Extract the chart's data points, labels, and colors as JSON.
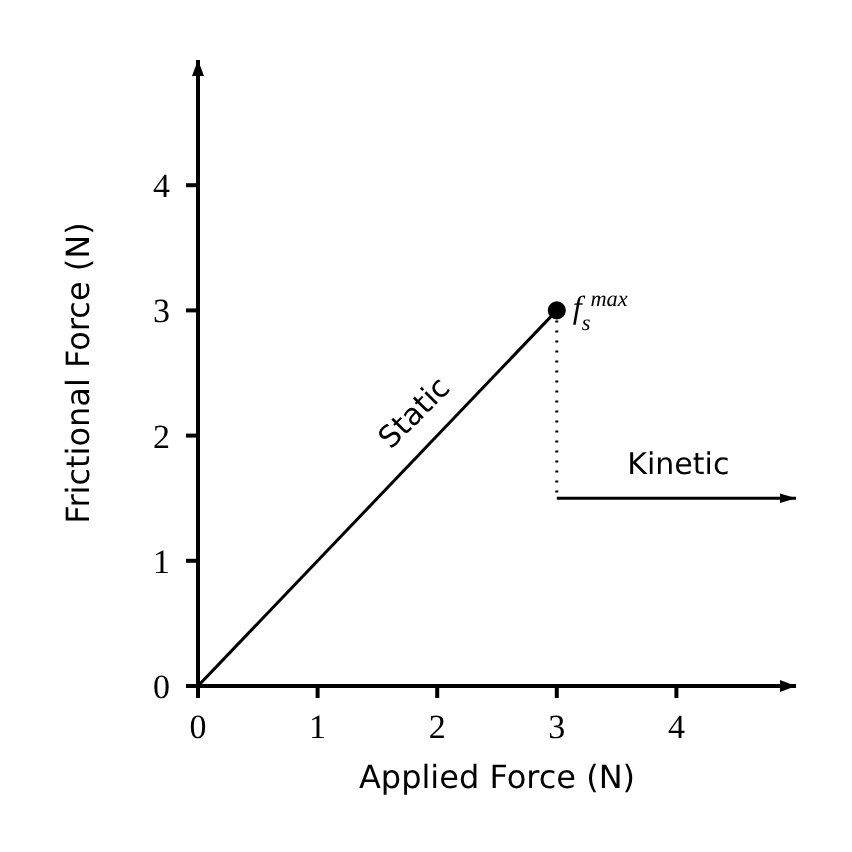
{
  "chart_data": {
    "type": "line",
    "xlabel": "Applied Force (N)",
    "ylabel": "Frictional Force (N)",
    "xlim": [
      0,
      5
    ],
    "ylim": [
      0,
      5
    ],
    "xticks": [
      0,
      1,
      2,
      3,
      4
    ],
    "yticks": [
      0,
      1,
      2,
      3,
      4
    ],
    "grid": false,
    "legend": false,
    "series": [
      {
        "x": [
          0,
          3
        ],
        "values": [
          0,
          3
        ],
        "color": "#000000",
        "line_style": "solid",
        "marker": "none"
      },
      {
        "x": [
          3,
          3
        ],
        "values": [
          3,
          1.5
        ],
        "color": "#000000",
        "line_style": "dotted",
        "marker": "none"
      },
      {
        "x": [
          3,
          5
        ],
        "values": [
          1.5,
          1.5
        ],
        "color": "#000000",
        "line_style": "solid",
        "marker": "none"
      },
      {
        "type": "scatter",
        "x": [
          3
        ],
        "values": [
          3
        ],
        "color": "#000000",
        "marker": "circle"
      }
    ],
    "annotations": [
      {
        "text": "Static",
        "x": 2,
        "y": 2
      },
      {
        "text": "Kinetic",
        "x": 4,
        "y": 1.5
      },
      {
        "text": "f$_{s}$$^{max}$",
        "x": 3,
        "y": 3
      }
    ]
  }
}
